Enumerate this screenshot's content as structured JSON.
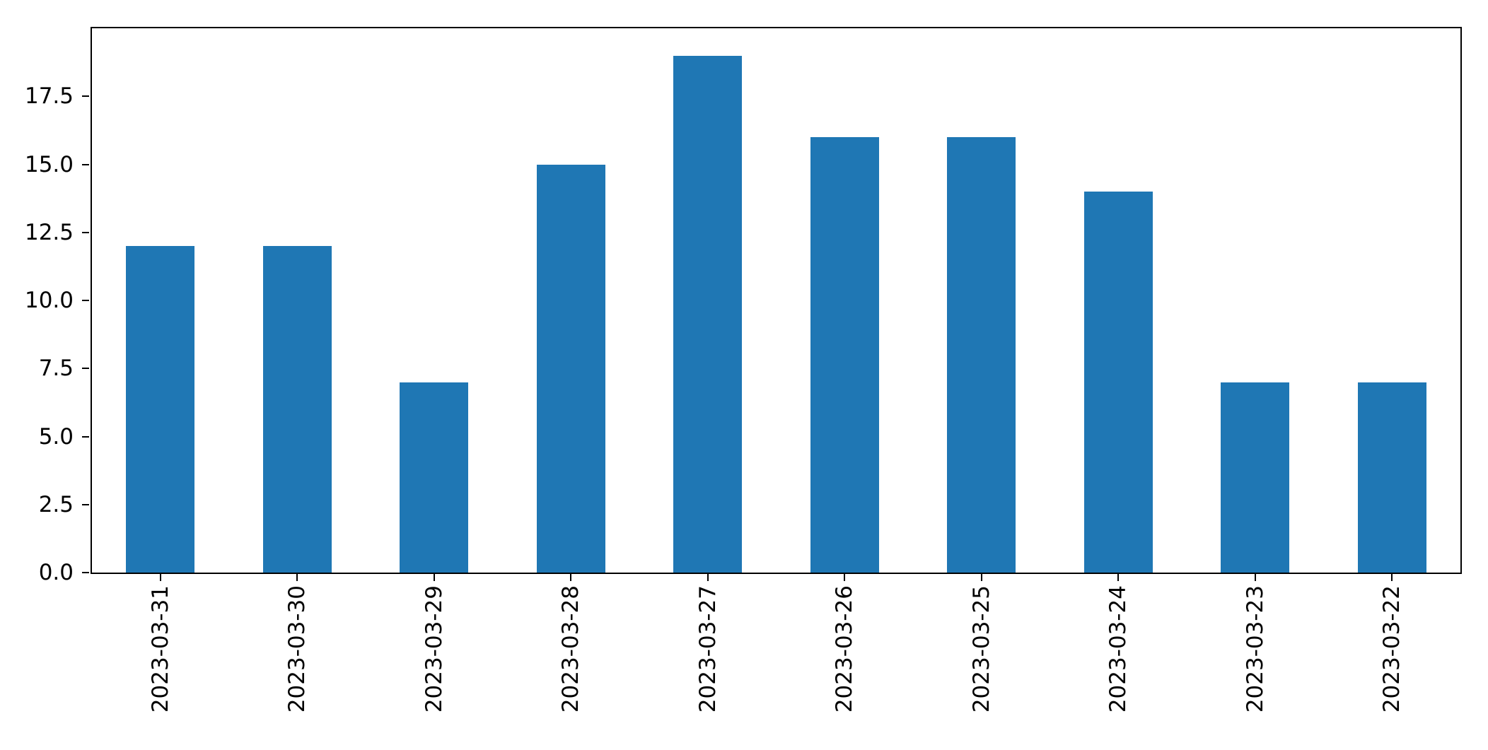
{
  "chart_data": {
    "type": "bar",
    "categories": [
      "2023-03-31",
      "2023-03-30",
      "2023-03-29",
      "2023-03-28",
      "2023-03-27",
      "2023-03-26",
      "2023-03-25",
      "2023-03-24",
      "2023-03-23",
      "2023-03-22"
    ],
    "values": [
      12,
      12,
      7,
      15,
      19,
      16,
      16,
      14,
      7,
      7
    ],
    "title": "",
    "xlabel": "",
    "ylabel": "",
    "ylim": [
      0,
      20
    ],
    "yticks": [
      0.0,
      2.5,
      5.0,
      7.5,
      10.0,
      12.5,
      15.0,
      17.5
    ],
    "ytick_labels": [
      "0.0",
      "2.5",
      "5.0",
      "7.5",
      "10.0",
      "12.5",
      "15.0",
      "17.5"
    ],
    "x_tick_rotation": 90,
    "bar_color": "#1f77b4",
    "bar_width_fraction": 0.5,
    "spine_color": "#000000",
    "background_color": "#ffffff",
    "grid": false,
    "legend_position": "none"
  }
}
